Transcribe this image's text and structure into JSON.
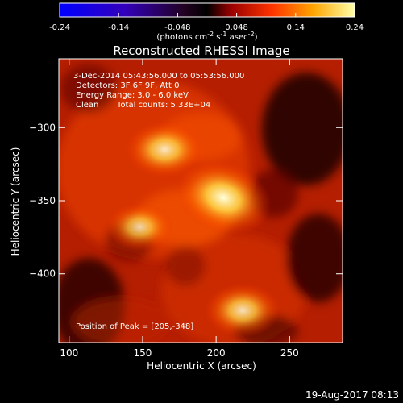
{
  "chart_data": {
    "type": "heatmap",
    "title": "Reconstructed RHESSI Image",
    "xlabel": "Heliocentric X (arcsec)",
    "ylabel": "Heliocentric Y (arcsec)",
    "xlim": [
      93,
      286
    ],
    "ylim": [
      -447,
      -253
    ],
    "x_ticks": [
      100,
      150,
      200,
      250
    ],
    "y_ticks": [
      -300,
      -350,
      -400
    ],
    "colorbar": {
      "ticks": [
        "-0.24",
        "-0.14",
        "-0.048",
        "0.048",
        "0.14",
        "0.24"
      ],
      "tick_values": [
        -0.24,
        -0.144,
        -0.048,
        0.048,
        0.144,
        0.24
      ],
      "range": [
        -0.24,
        0.24
      ]
    },
    "annotations": {
      "time_range": "3-Dec-2014 05:43:56.000 to 05:53:56.000",
      "detectors": "Detectors: 3F 6F 9F, Att 0",
      "energy": "Energy Range: 3.0 - 6.0 keV",
      "clean": "Clean",
      "total_counts": "Total counts: 5.33E+04",
      "peak": "Position of Peak = [205,-348]"
    },
    "sources": [
      {
        "x": 205,
        "y": -348,
        "intensity": 0.24
      },
      {
        "x": 165,
        "y": -315,
        "intensity": 0.17
      },
      {
        "x": 218,
        "y": -425,
        "intensity": 0.16
      },
      {
        "x": 148,
        "y": -368,
        "intensity": 0.13
      }
    ]
  },
  "colorbar_units": "(photons cm",
  "colorbar_units_exp1": "-2",
  "colorbar_units_mid": " s",
  "colorbar_units_exp2": "-1",
  "colorbar_units_mid2": " asec",
  "colorbar_units_exp3": "-2",
  "colorbar_units_end": ")",
  "footer_date": "19-Aug-2017 08:13"
}
